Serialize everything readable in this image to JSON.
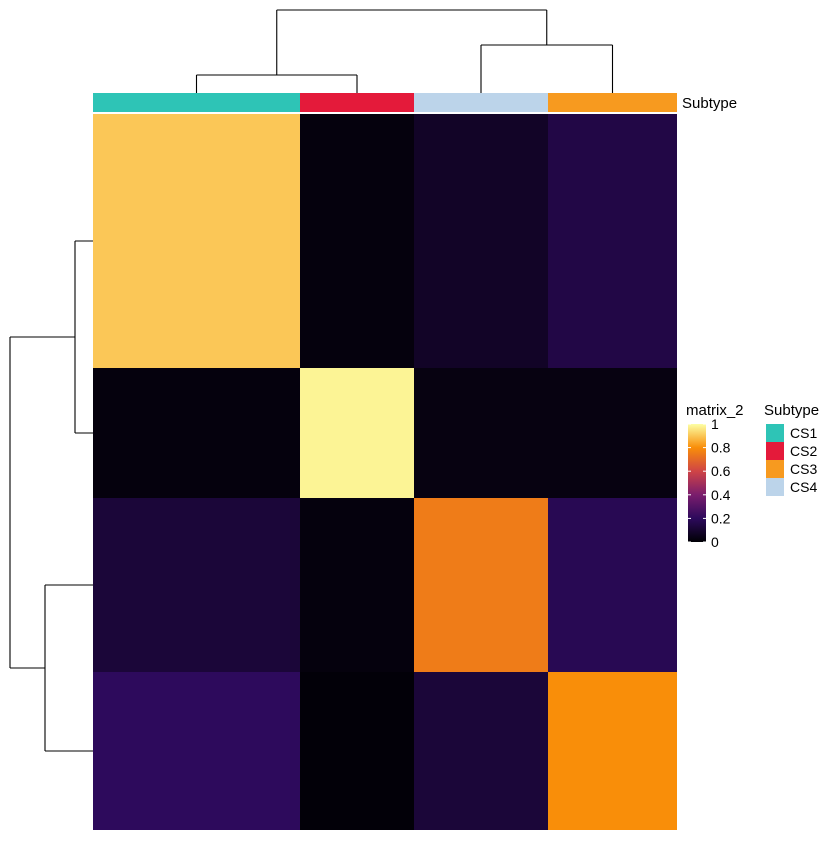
{
  "chart_data": {
    "type": "heatmap",
    "title": "",
    "xlabel": "",
    "ylabel": "",
    "annotation_name": "Subtype",
    "color_scale": {
      "name": "matrix_2",
      "breaks": [
        0,
        0.2,
        0.4,
        0.6,
        0.8,
        1
      ],
      "tick_labels": [
        "0",
        "0.2",
        "0.4",
        "0.6",
        "0.8",
        "1"
      ],
      "colors": [
        "#000004",
        "#2d0a5c",
        "#7a1d6d",
        "#cf4446",
        "#f98e09",
        "#fcffa4"
      ]
    },
    "legend": {
      "title": "Subtype",
      "placement": "right",
      "entries": [
        {
          "label": "CS1",
          "color": "#2ec4b6"
        },
        {
          "label": "CS2",
          "color": "#e41a3a"
        },
        {
          "label": "CS3",
          "color": "#f79a1f"
        },
        {
          "label": "CS4",
          "color": "#bcd4ea"
        }
      ]
    },
    "groups": [
      {
        "subtype": "CS1",
        "color": "#2ec4b6"
      },
      {
        "subtype": "CS2",
        "color": "#e41a3a"
      },
      {
        "subtype": "CS4",
        "color": "#bcd4ea"
      },
      {
        "subtype": "CS3",
        "color": "#f79a1f"
      }
    ],
    "column_dendrogram": "((CS1,CS2),(CS4,CS3))",
    "row_dendrogram": "((CS1,CS2),(CS4,CS3))",
    "blocks": [
      [
        0.9,
        0.02,
        0.08,
        0.15
      ],
      [
        0.02,
        0.98,
        0.03,
        0.03
      ],
      [
        0.12,
        0.02,
        0.75,
        0.18
      ],
      [
        0.2,
        0.01,
        0.12,
        0.8
      ]
    ]
  }
}
